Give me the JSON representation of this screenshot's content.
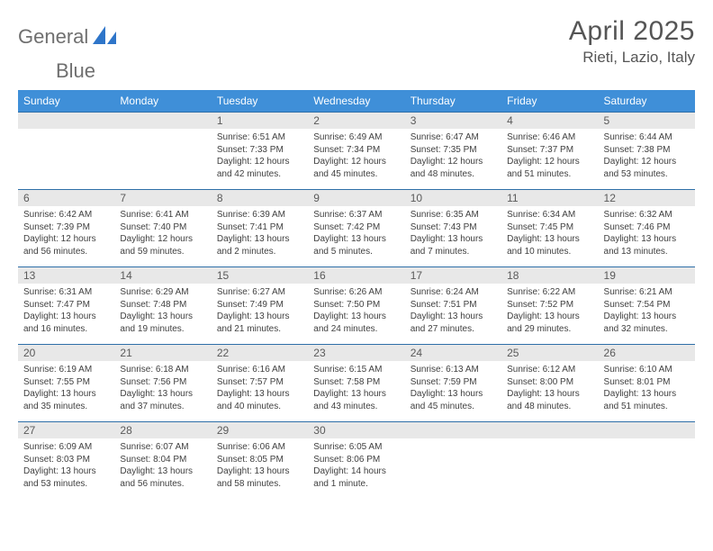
{
  "header": {
    "logo_primary": "General",
    "logo_accent": "Blue",
    "month_title": "April 2025",
    "location": "Rieti, Lazio, Italy"
  },
  "colors": {
    "header_bg": "#3f8fd8",
    "header_text": "#ffffff",
    "daynum_bg": "#e8e8e8",
    "row_divider": "#2e6fa8",
    "body_text": "#404040",
    "logo_gray": "#6f6f6f",
    "logo_blue": "#2e75c9"
  },
  "day_labels": [
    "Sunday",
    "Monday",
    "Tuesday",
    "Wednesday",
    "Thursday",
    "Friday",
    "Saturday"
  ],
  "weeks": [
    [
      null,
      null,
      {
        "n": "1",
        "sunrise": "Sunrise: 6:51 AM",
        "sunset": "Sunset: 7:33 PM",
        "daylight1": "Daylight: 12 hours",
        "daylight2": "and 42 minutes."
      },
      {
        "n": "2",
        "sunrise": "Sunrise: 6:49 AM",
        "sunset": "Sunset: 7:34 PM",
        "daylight1": "Daylight: 12 hours",
        "daylight2": "and 45 minutes."
      },
      {
        "n": "3",
        "sunrise": "Sunrise: 6:47 AM",
        "sunset": "Sunset: 7:35 PM",
        "daylight1": "Daylight: 12 hours",
        "daylight2": "and 48 minutes."
      },
      {
        "n": "4",
        "sunrise": "Sunrise: 6:46 AM",
        "sunset": "Sunset: 7:37 PM",
        "daylight1": "Daylight: 12 hours",
        "daylight2": "and 51 minutes."
      },
      {
        "n": "5",
        "sunrise": "Sunrise: 6:44 AM",
        "sunset": "Sunset: 7:38 PM",
        "daylight1": "Daylight: 12 hours",
        "daylight2": "and 53 minutes."
      }
    ],
    [
      {
        "n": "6",
        "sunrise": "Sunrise: 6:42 AM",
        "sunset": "Sunset: 7:39 PM",
        "daylight1": "Daylight: 12 hours",
        "daylight2": "and 56 minutes."
      },
      {
        "n": "7",
        "sunrise": "Sunrise: 6:41 AM",
        "sunset": "Sunset: 7:40 PM",
        "daylight1": "Daylight: 12 hours",
        "daylight2": "and 59 minutes."
      },
      {
        "n": "8",
        "sunrise": "Sunrise: 6:39 AM",
        "sunset": "Sunset: 7:41 PM",
        "daylight1": "Daylight: 13 hours",
        "daylight2": "and 2 minutes."
      },
      {
        "n": "9",
        "sunrise": "Sunrise: 6:37 AM",
        "sunset": "Sunset: 7:42 PM",
        "daylight1": "Daylight: 13 hours",
        "daylight2": "and 5 minutes."
      },
      {
        "n": "10",
        "sunrise": "Sunrise: 6:35 AM",
        "sunset": "Sunset: 7:43 PM",
        "daylight1": "Daylight: 13 hours",
        "daylight2": "and 7 minutes."
      },
      {
        "n": "11",
        "sunrise": "Sunrise: 6:34 AM",
        "sunset": "Sunset: 7:45 PM",
        "daylight1": "Daylight: 13 hours",
        "daylight2": "and 10 minutes."
      },
      {
        "n": "12",
        "sunrise": "Sunrise: 6:32 AM",
        "sunset": "Sunset: 7:46 PM",
        "daylight1": "Daylight: 13 hours",
        "daylight2": "and 13 minutes."
      }
    ],
    [
      {
        "n": "13",
        "sunrise": "Sunrise: 6:31 AM",
        "sunset": "Sunset: 7:47 PM",
        "daylight1": "Daylight: 13 hours",
        "daylight2": "and 16 minutes."
      },
      {
        "n": "14",
        "sunrise": "Sunrise: 6:29 AM",
        "sunset": "Sunset: 7:48 PM",
        "daylight1": "Daylight: 13 hours",
        "daylight2": "and 19 minutes."
      },
      {
        "n": "15",
        "sunrise": "Sunrise: 6:27 AM",
        "sunset": "Sunset: 7:49 PM",
        "daylight1": "Daylight: 13 hours",
        "daylight2": "and 21 minutes."
      },
      {
        "n": "16",
        "sunrise": "Sunrise: 6:26 AM",
        "sunset": "Sunset: 7:50 PM",
        "daylight1": "Daylight: 13 hours",
        "daylight2": "and 24 minutes."
      },
      {
        "n": "17",
        "sunrise": "Sunrise: 6:24 AM",
        "sunset": "Sunset: 7:51 PM",
        "daylight1": "Daylight: 13 hours",
        "daylight2": "and 27 minutes."
      },
      {
        "n": "18",
        "sunrise": "Sunrise: 6:22 AM",
        "sunset": "Sunset: 7:52 PM",
        "daylight1": "Daylight: 13 hours",
        "daylight2": "and 29 minutes."
      },
      {
        "n": "19",
        "sunrise": "Sunrise: 6:21 AM",
        "sunset": "Sunset: 7:54 PM",
        "daylight1": "Daylight: 13 hours",
        "daylight2": "and 32 minutes."
      }
    ],
    [
      {
        "n": "20",
        "sunrise": "Sunrise: 6:19 AM",
        "sunset": "Sunset: 7:55 PM",
        "daylight1": "Daylight: 13 hours",
        "daylight2": "and 35 minutes."
      },
      {
        "n": "21",
        "sunrise": "Sunrise: 6:18 AM",
        "sunset": "Sunset: 7:56 PM",
        "daylight1": "Daylight: 13 hours",
        "daylight2": "and 37 minutes."
      },
      {
        "n": "22",
        "sunrise": "Sunrise: 6:16 AM",
        "sunset": "Sunset: 7:57 PM",
        "daylight1": "Daylight: 13 hours",
        "daylight2": "and 40 minutes."
      },
      {
        "n": "23",
        "sunrise": "Sunrise: 6:15 AM",
        "sunset": "Sunset: 7:58 PM",
        "daylight1": "Daylight: 13 hours",
        "daylight2": "and 43 minutes."
      },
      {
        "n": "24",
        "sunrise": "Sunrise: 6:13 AM",
        "sunset": "Sunset: 7:59 PM",
        "daylight1": "Daylight: 13 hours",
        "daylight2": "and 45 minutes."
      },
      {
        "n": "25",
        "sunrise": "Sunrise: 6:12 AM",
        "sunset": "Sunset: 8:00 PM",
        "daylight1": "Daylight: 13 hours",
        "daylight2": "and 48 minutes."
      },
      {
        "n": "26",
        "sunrise": "Sunrise: 6:10 AM",
        "sunset": "Sunset: 8:01 PM",
        "daylight1": "Daylight: 13 hours",
        "daylight2": "and 51 minutes."
      }
    ],
    [
      {
        "n": "27",
        "sunrise": "Sunrise: 6:09 AM",
        "sunset": "Sunset: 8:03 PM",
        "daylight1": "Daylight: 13 hours",
        "daylight2": "and 53 minutes."
      },
      {
        "n": "28",
        "sunrise": "Sunrise: 6:07 AM",
        "sunset": "Sunset: 8:04 PM",
        "daylight1": "Daylight: 13 hours",
        "daylight2": "and 56 minutes."
      },
      {
        "n": "29",
        "sunrise": "Sunrise: 6:06 AM",
        "sunset": "Sunset: 8:05 PM",
        "daylight1": "Daylight: 13 hours",
        "daylight2": "and 58 minutes."
      },
      {
        "n": "30",
        "sunrise": "Sunrise: 6:05 AM",
        "sunset": "Sunset: 8:06 PM",
        "daylight1": "Daylight: 14 hours",
        "daylight2": "and 1 minute."
      },
      null,
      null,
      null
    ]
  ]
}
